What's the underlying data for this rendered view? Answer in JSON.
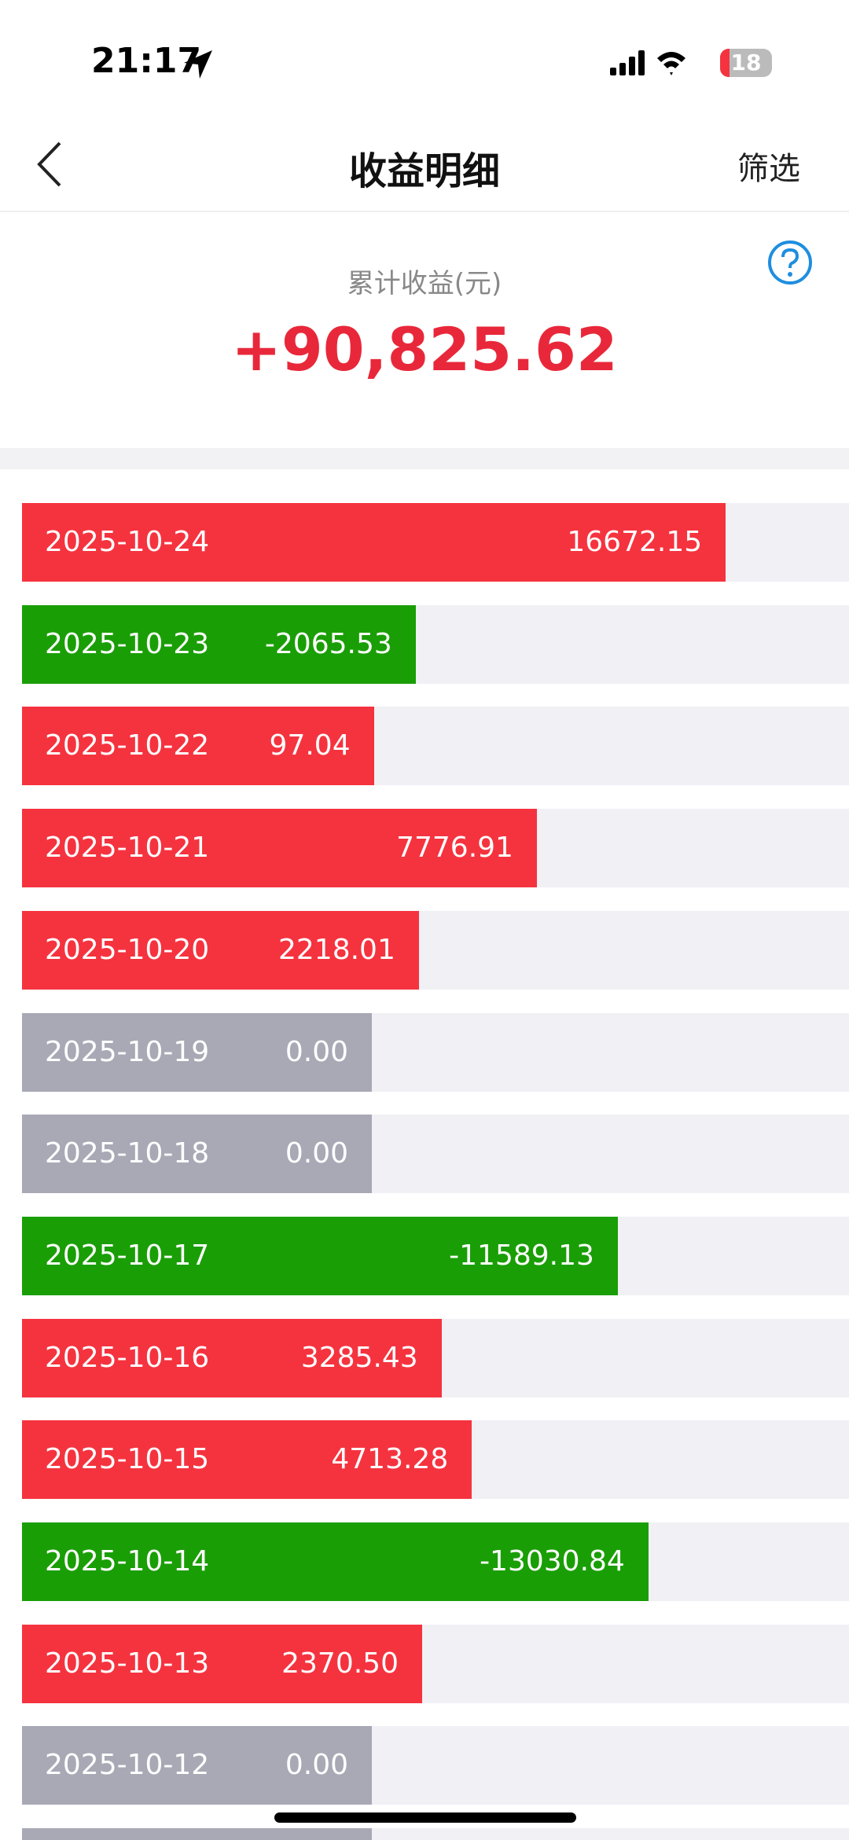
{
  "status_bar": {
    "time": "21:17",
    "battery": "18"
  },
  "nav": {
    "title": "收益明细",
    "action": "筛选"
  },
  "summary": {
    "label": "累计收益(元)",
    "total": "+90,825.62"
  },
  "colors": {
    "positive": "#f5333f",
    "negative": "#1a9e06",
    "zero": "#a8a9b5"
  },
  "rows": [
    {
      "date": "2025-10-24",
      "value": "16672.15"
    },
    {
      "date": "2025-10-23",
      "value": "-2065.53"
    },
    {
      "date": "2025-10-22",
      "value": "97.04"
    },
    {
      "date": "2025-10-21",
      "value": "7776.91"
    },
    {
      "date": "2025-10-20",
      "value": "2218.01"
    },
    {
      "date": "2025-10-19",
      "value": "0.00"
    },
    {
      "date": "2025-10-18",
      "value": "0.00"
    },
    {
      "date": "2025-10-17",
      "value": "-11589.13"
    },
    {
      "date": "2025-10-16",
      "value": "3285.43"
    },
    {
      "date": "2025-10-15",
      "value": "4713.28"
    },
    {
      "date": "2025-10-14",
      "value": "-13030.84"
    },
    {
      "date": "2025-10-13",
      "value": "2370.50"
    },
    {
      "date": "2025-10-12",
      "value": "0.00"
    }
  ]
}
